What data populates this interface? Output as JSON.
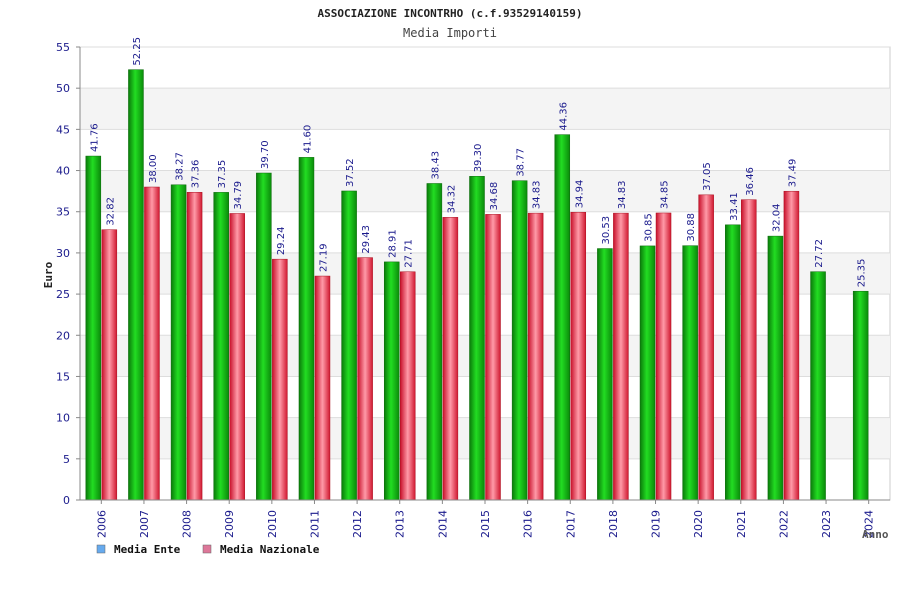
{
  "chart_data": {
    "type": "bar",
    "title": "ASSOCIAZIONE INCONTRHO (c.f.93529140159)",
    "subtitle": "Media Importi",
    "xlabel": "Anno",
    "ylabel": "Euro",
    "ylim": [
      0,
      55
    ],
    "yticks": [
      "0",
      "5",
      "10",
      "15",
      "20",
      "25",
      "30",
      "35",
      "40",
      "45",
      "50",
      "55"
    ],
    "grid": true,
    "legend_position": "bottom-left",
    "categories": [
      "2006",
      "2007",
      "2008",
      "2009",
      "2010",
      "2011",
      "2012",
      "2013",
      "2014",
      "2015",
      "2016",
      "2017",
      "2018",
      "2019",
      "2020",
      "2021",
      "2022",
      "2023",
      "2024"
    ],
    "series": [
      {
        "name": "Media Ente",
        "color": "#11bb11",
        "legend_color": "#66aaee",
        "values": [
          41.76,
          52.25,
          38.27,
          37.35,
          39.7,
          41.6,
          37.52,
          28.91,
          38.43,
          39.3,
          38.77,
          44.36,
          30.53,
          30.85,
          30.88,
          33.41,
          32.04,
          27.72,
          25.35
        ],
        "labels": [
          "41.76",
          "52.25",
          "38.27",
          "37.35",
          "39.70",
          "41.60",
          "37.52",
          "28.91",
          "38.43",
          "39.30",
          "38.77",
          "44.36",
          "30.53",
          "30.85",
          "30.88",
          "33.41",
          "32.04",
          "27.72",
          "25.35"
        ]
      },
      {
        "name": "Media Nazionale",
        "color": "#ee2233",
        "legend_color": "#dd7799",
        "values": [
          32.82,
          38.0,
          37.36,
          34.79,
          29.24,
          27.19,
          29.43,
          27.71,
          34.32,
          34.68,
          34.83,
          34.94,
          34.83,
          34.85,
          37.05,
          36.46,
          37.49,
          null,
          null
        ],
        "labels": [
          "32.82",
          "38.00",
          "37.36",
          "34.79",
          "29.24",
          "27.19",
          "29.43",
          "27.71",
          "34.32",
          "34.68",
          "34.83",
          "34.94",
          "34.83",
          "34.85",
          "37.05",
          "36.46",
          "37.49",
          null,
          null
        ]
      }
    ]
  }
}
